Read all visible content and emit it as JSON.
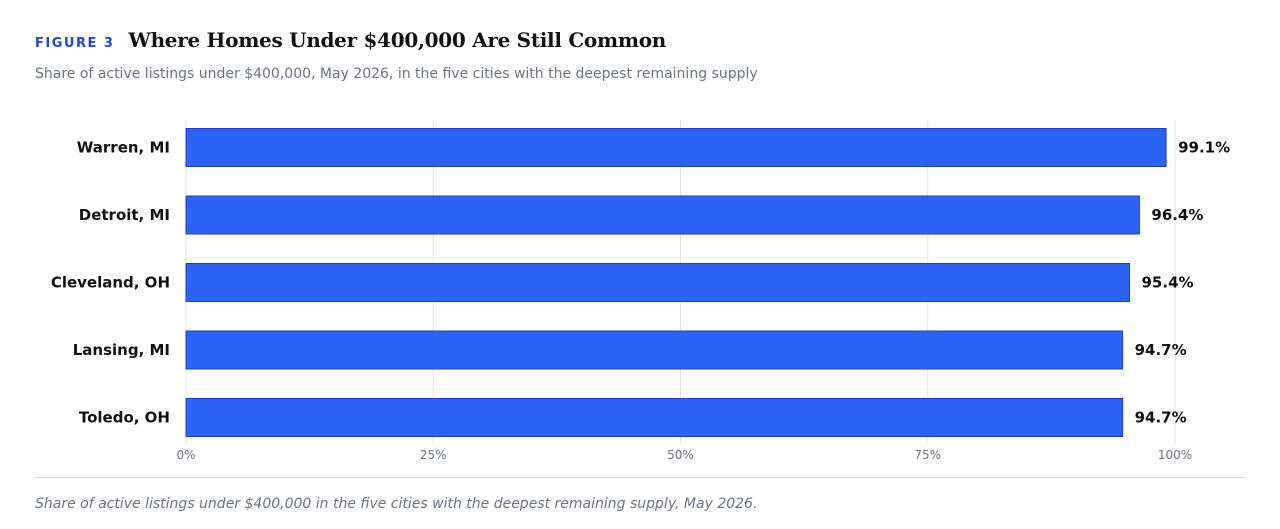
{
  "figure_label": "FIGURE 3",
  "chart_data": {
    "type": "bar",
    "orientation": "horizontal",
    "title": "Where Homes Under $400,000 Are Still Common",
    "subtitle": "Share of active listings under $400,000, May 2026, in the five cities with the deepest remaining supply",
    "categories": [
      "Warren, MI",
      "Detroit, MI",
      "Cleveland, OH",
      "Lansing, MI",
      "Toledo, OH"
    ],
    "values": [
      99.1,
      96.4,
      95.4,
      94.7,
      94.7
    ],
    "data_labels": [
      "99.1%",
      "96.4%",
      "95.4%",
      "94.7%",
      "94.7%"
    ],
    "x_ticks": [
      "0%",
      "25%",
      "50%",
      "75%",
      "100%"
    ],
    "x_tick_values": [
      0,
      25,
      50,
      75,
      100
    ],
    "xlim": [
      0,
      100
    ],
    "grid": "vertical",
    "bar_color": "#2c62f5",
    "bar_border_color": "#1a3fc4",
    "accent_color": "#1f46d6"
  },
  "caption": "Share of active listings under $400,000 in the five cities with the deepest remaining supply, May 2026."
}
